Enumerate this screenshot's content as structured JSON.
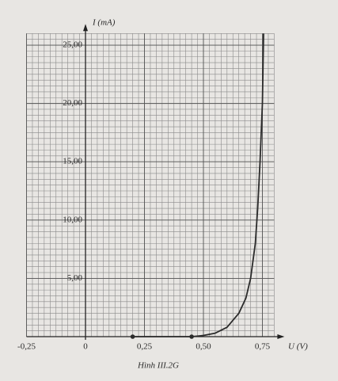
{
  "chart_data": {
    "type": "line",
    "caption": "Hình III.2G",
    "x_label": "U (V)",
    "y_label": "I (mA)",
    "xlim": [
      -0.25,
      0.8
    ],
    "ylim": [
      0,
      26
    ],
    "xticks": [
      {
        "value": -0.25,
        "label": "-0,25"
      },
      0,
      {
        "value": 0.25,
        "label": "0,25"
      },
      {
        "value": 0.5,
        "label": "0,50"
      },
      {
        "value": 0.75,
        "label": "0,75"
      }
    ],
    "yticks": [
      {
        "value": 5,
        "label": "5,00"
      },
      {
        "value": 10,
        "label": "10,00"
      },
      {
        "value": 15,
        "label": "15,00"
      },
      {
        "value": 20,
        "label": "20,00"
      },
      {
        "value": 25,
        "label": "25,00"
      }
    ],
    "grid": true,
    "series": [
      {
        "color": "#2b2b2b",
        "x": [
          0.2,
          0.45,
          0.5,
          0.55,
          0.6,
          0.65,
          0.68,
          0.7,
          0.72,
          0.73,
          0.74,
          0.75,
          0.755
        ],
        "values": [
          0,
          0,
          0.1,
          0.3,
          0.8,
          2,
          3.3,
          5,
          8,
          11,
          15,
          20,
          26
        ]
      },
      {
        "color": "#2b2b2b",
        "markers": true,
        "x": [
          0.2,
          0.45
        ],
        "values": [
          0,
          0
        ]
      }
    ]
  }
}
